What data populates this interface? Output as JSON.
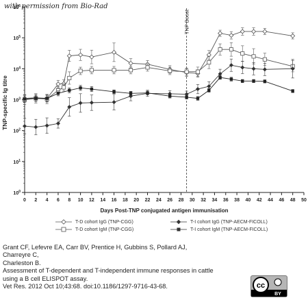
{
  "watermark": "with permission from Bio-Rad",
  "chart_data": {
    "type": "line",
    "xlabel": "Days Post-TNP conjugated antigen immunisation",
    "ylabel": "TNP-specific Ig titre",
    "x_ticks": [
      0,
      2,
      4,
      6,
      8,
      10,
      12,
      14,
      16,
      18,
      20,
      22,
      24,
      26,
      28,
      30,
      32,
      34,
      36,
      38,
      40,
      42,
      44,
      46,
      48,
      50
    ],
    "y_scale": "log",
    "y_ticks": [
      {
        "value": 1,
        "base": "10",
        "exp": "0"
      },
      {
        "value": 10,
        "base": "10",
        "exp": "1"
      },
      {
        "value": 100,
        "base": "10",
        "exp": "2"
      },
      {
        "value": 1000,
        "base": "10",
        "exp": "3"
      },
      {
        "value": 10000,
        "base": "10",
        "exp": "4"
      },
      {
        "value": 100000,
        "base": "10",
        "exp": "5"
      },
      {
        "value": 1000000,
        "base": "10",
        "exp": "6"
      }
    ],
    "xlim": [
      0,
      50
    ],
    "ylim": [
      1,
      1000000
    ],
    "annotation": {
      "label": "TNP Boost",
      "x": 29
    },
    "series": [
      {
        "name": "T-D cohort  IgG (TNP-CGG)",
        "marker": "open-diamond",
        "x": [
          0,
          2,
          4,
          6,
          7,
          8,
          10,
          12,
          16,
          19,
          22,
          26,
          29,
          31,
          33,
          35,
          37,
          39,
          41,
          43,
          48
        ],
        "y": [
          1100,
          1150,
          1100,
          3200,
          3300,
          26000,
          28000,
          24000,
          34000,
          15000,
          14000,
          9500,
          7500,
          7000,
          28000,
          140000,
          120000,
          160000,
          160000,
          160000,
          115000
        ],
        "err": [
          0.12,
          0.12,
          0.12,
          0.12,
          0.12,
          0.18,
          0.18,
          0.22,
          0.3,
          0.15,
          0.12,
          0.12,
          0.12,
          0.12,
          0.14,
          0.1,
          0.12,
          0.12,
          0.12,
          0.1,
          0.1
        ]
      },
      {
        "name": "T-D cohort  IgM (TNP-CGG)",
        "marker": "open-square",
        "x": [
          0,
          2,
          4,
          6,
          7,
          8,
          10,
          12,
          16,
          19,
          22,
          26,
          29,
          31,
          33,
          35,
          37,
          39,
          41,
          43,
          48
        ],
        "y": [
          1000,
          1100,
          1050,
          2000,
          2500,
          5000,
          8500,
          9000,
          9000,
          9000,
          11000,
          8500,
          8000,
          8000,
          16000,
          42000,
          42000,
          31000,
          25000,
          20000,
          12000
        ],
        "err": [
          0.15,
          0.15,
          0.15,
          0.12,
          0.12,
          0.2,
          0.12,
          0.12,
          0.12,
          0.12,
          0.12,
          0.12,
          0.12,
          0.15,
          0.2,
          0.18,
          0.22,
          0.25,
          0.25,
          0.2,
          0.18
        ]
      },
      {
        "name": "T-I cohort IgG (TNP-AECM-FICOLL)",
        "marker": "plus-dot",
        "x": [
          0,
          2,
          4,
          6,
          8,
          10,
          12,
          16,
          19,
          22,
          26,
          29,
          31,
          33,
          35,
          37,
          39,
          41,
          43,
          48
        ],
        "y": [
          140,
          130,
          145,
          170,
          580,
          780,
          800,
          830,
          1300,
          1600,
          1550,
          1500,
          2200,
          2700,
          6800,
          13000,
          11000,
          10000,
          9500,
          10000
        ],
        "err": [
          0.25,
          0.25,
          0.25,
          0.15,
          0.3,
          0.3,
          0.25,
          0.25,
          0.15,
          0.1,
          0.1,
          0.1,
          0.15,
          0.15,
          0.15,
          0.2,
          0.2,
          0.2,
          0.2,
          0.3
        ]
      },
      {
        "name": "T-I cohort IgM (TNP-AECM-FICOLL)",
        "marker": "filled-square",
        "x": [
          0,
          2,
          4,
          6,
          8,
          10,
          12,
          16,
          19,
          22,
          26,
          29,
          31,
          33,
          35,
          37,
          39,
          41,
          43,
          48
        ],
        "y": [
          1050,
          1100,
          1100,
          1600,
          2000,
          2400,
          2200,
          1800,
          1600,
          1650,
          1300,
          1200,
          1100,
          2000,
          5200,
          4600,
          4000,
          4000,
          3900,
          1900
        ],
        "err": [
          0.1,
          0.1,
          0.1,
          0.08,
          0.08,
          0.08,
          0.08,
          0.06,
          0.06,
          0.06,
          0.06,
          0.06,
          0.06,
          0.06,
          0.06,
          0.06,
          0.05,
          0.05,
          0.05,
          0.05
        ]
      }
    ]
  },
  "citation": {
    "lines": [
      "Grant CF, Lefevre EA, Carr BV, Prentice H, Gubbins S, Pollard AJ,",
      "Charreyre C,",
      "Charleston B.",
      "Assessment of T-dependent and T-independent immune responses in cattle",
      "using a B cell ELISPOT assay.",
      "Vet Res. 2012 Oct 10;43:68. doi:10.1186/1297-9716-43-68."
    ]
  },
  "license_badge": {
    "top": "cc",
    "bottom": "BY"
  }
}
